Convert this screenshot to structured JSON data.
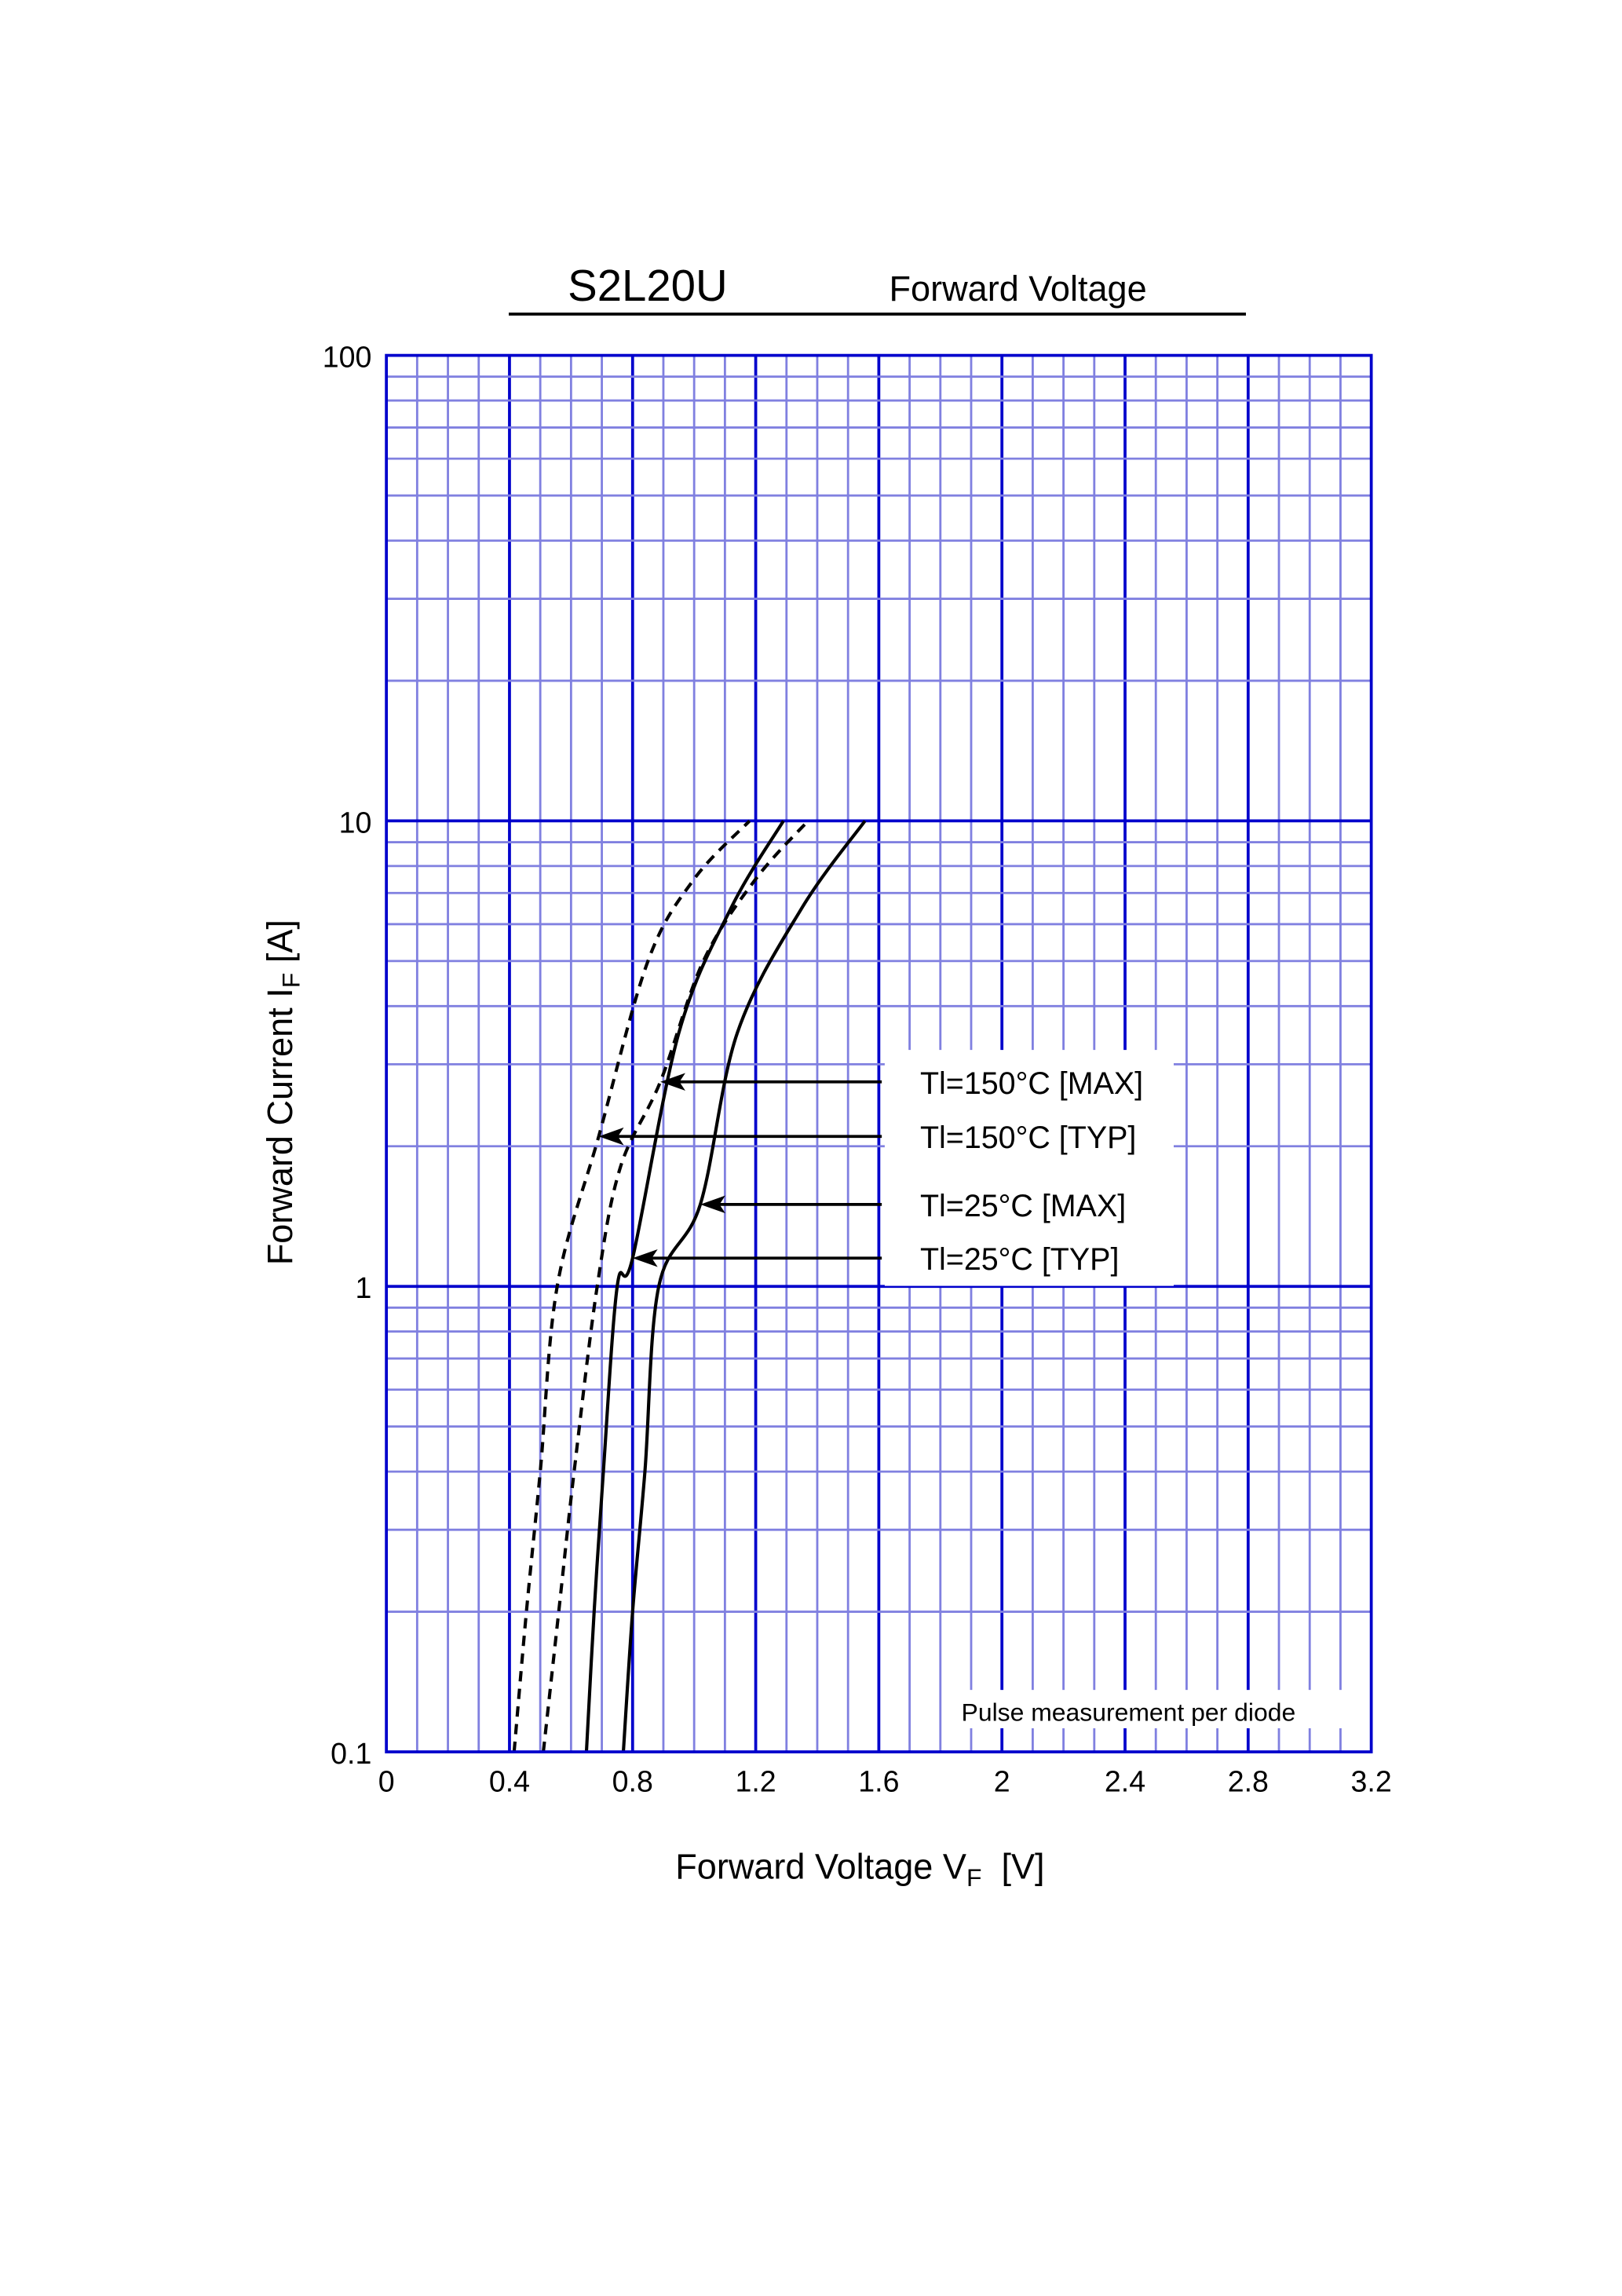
{
  "header": {
    "part_number": "S2L20U",
    "title": "Forward  Voltage"
  },
  "chart_data": {
    "type": "line",
    "title": "Forward  Voltage",
    "xlabel": {
      "main": "Forward Voltage  V",
      "sub": "F",
      "unit": "  [V]"
    },
    "ylabel": {
      "main": "Forward Current  I",
      "sub": "F",
      "unit": "  [A]"
    },
    "xlim": [
      0,
      3.2
    ],
    "ylim": [
      0.1,
      100
    ],
    "y_scale": "log",
    "grid": true,
    "x_ticks": [
      "0",
      "0.4",
      "0.8",
      "1.2",
      "1.6",
      "2",
      "2.4",
      "2.8",
      "3.2"
    ],
    "y_ticks": [
      "0.1",
      "1",
      "10",
      "100"
    ],
    "note": "Pulse  measurement  per  diode",
    "colors": {
      "grid_major": "#0000CC",
      "grid_minor": "#8080E0",
      "curve": "#000000"
    },
    "series": [
      {
        "name": "Tl=150°C [MAX]",
        "style": "dashed",
        "arrow_at": [
          0.89,
          2.75
        ],
        "points": [
          [
            0.51,
            0.1
          ],
          [
            0.56,
            0.2
          ],
          [
            0.61,
            0.4
          ],
          [
            0.685,
            1
          ],
          [
            0.76,
            1.8
          ],
          [
            0.89,
            2.75
          ],
          [
            1.03,
            5
          ],
          [
            1.2,
            7.5
          ],
          [
            1.37,
            10
          ]
        ]
      },
      {
        "name": "Tl=150°C [TYP]",
        "style": "dashed",
        "arrow_at": [
          0.69,
          2.1
        ],
        "points": [
          [
            0.415,
            0.1
          ],
          [
            0.455,
            0.2
          ],
          [
            0.5,
            0.4
          ],
          [
            0.555,
            1
          ],
          [
            0.69,
            2.1
          ],
          [
            0.85,
            5
          ],
          [
            1.0,
            7.5
          ],
          [
            1.18,
            10
          ]
        ]
      },
      {
        "name": "Tl=25°C [MAX]",
        "style": "solid",
        "arrow_at": [
          1.02,
          1.5
        ],
        "points": [
          [
            0.77,
            0.1
          ],
          [
            0.8,
            0.2
          ],
          [
            0.84,
            0.4
          ],
          [
            0.885,
            1
          ],
          [
            1.02,
            1.5
          ],
          [
            1.14,
            3.5
          ],
          [
            1.35,
            6.5
          ],
          [
            1.555,
            10
          ]
        ]
      },
      {
        "name": "Tl=25°C [TYP]",
        "style": "solid",
        "arrow_at": [
          0.8,
          1.15
        ],
        "points": [
          [
            0.65,
            0.1
          ],
          [
            0.675,
            0.2
          ],
          [
            0.705,
            0.4
          ],
          [
            0.75,
            1
          ],
          [
            0.8,
            1.15
          ],
          [
            0.95,
            3.5
          ],
          [
            1.12,
            6.5
          ],
          [
            1.29,
            10
          ]
        ]
      }
    ]
  }
}
